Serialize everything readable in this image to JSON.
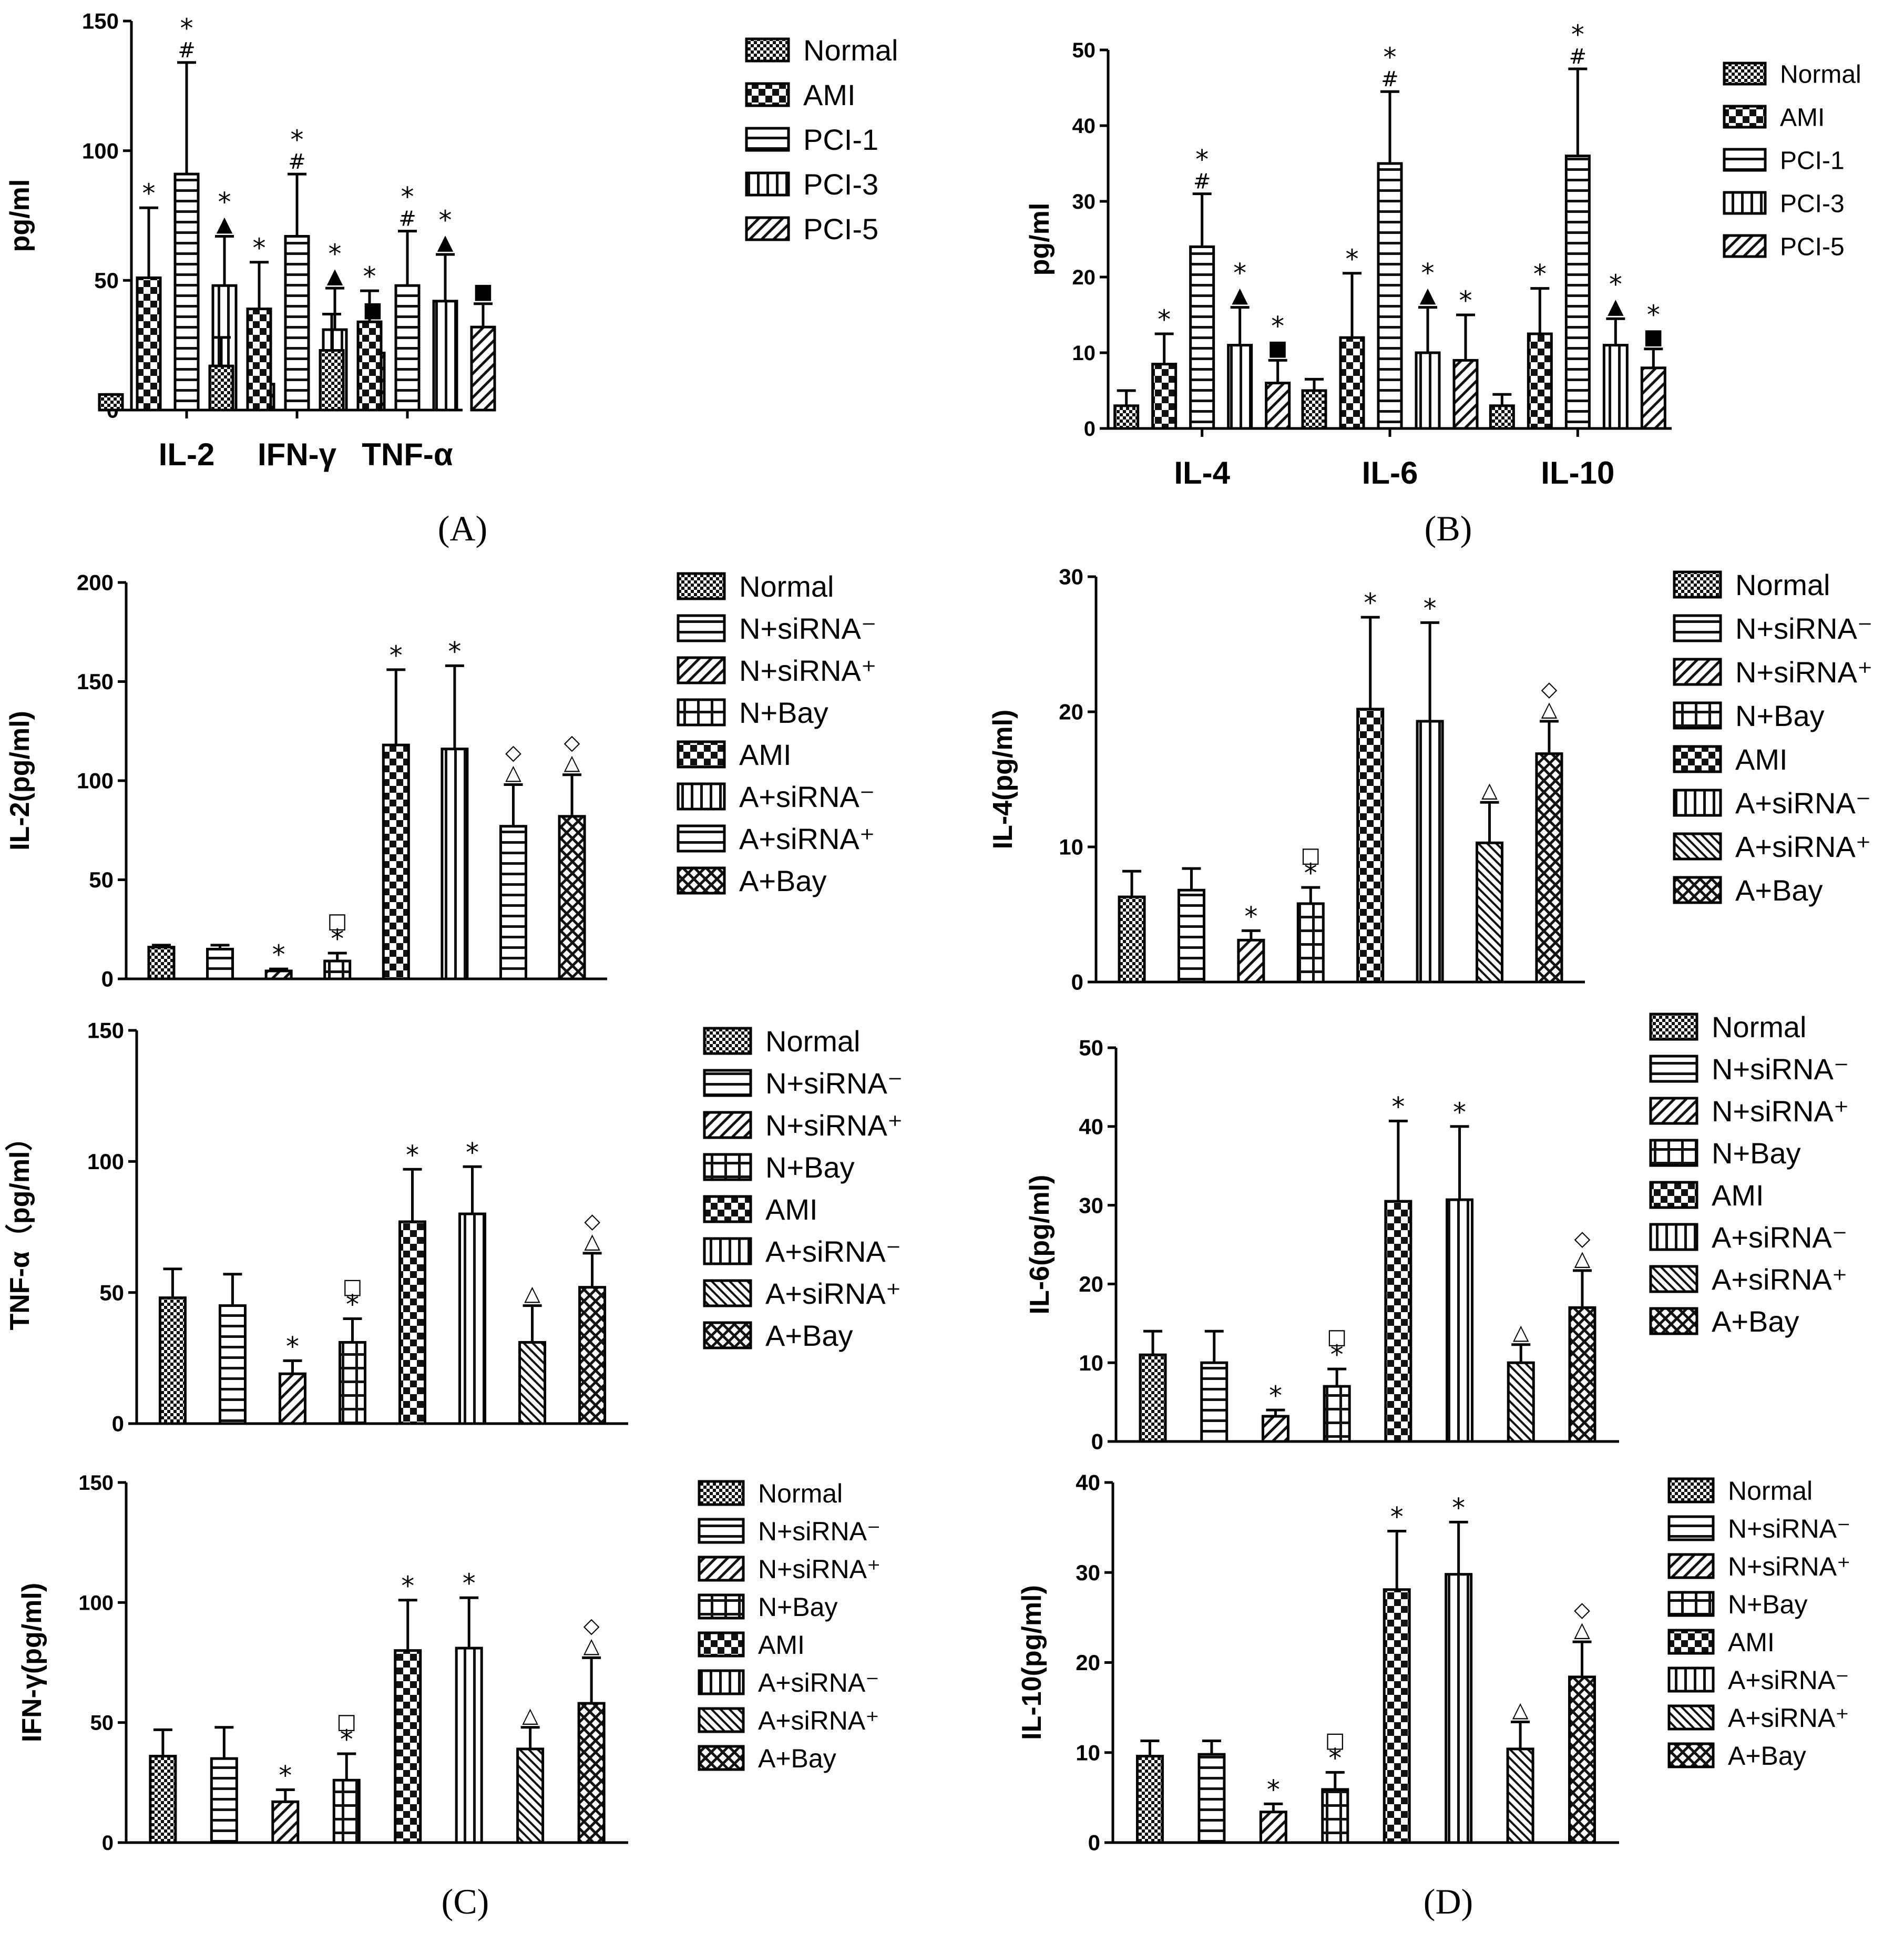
{
  "panel_labels": [
    "(A)",
    "(B)",
    "(C)",
    "(D)"
  ],
  "chart_data": [
    {
      "id": "A",
      "type": "bar",
      "title": "",
      "xlabel": "",
      "ylabel": "pg/ml",
      "ylim": [
        0,
        150
      ],
      "yticks": [
        0,
        50,
        100,
        150
      ],
      "categories": [
        "IL-2",
        "IFN-γ",
        "TNF-α"
      ],
      "legend": [
        "Normal",
        "AMI",
        "PCI-1",
        "PCI-3",
        "PCI-5"
      ],
      "series": [
        {
          "name": "Normal",
          "pattern": "checker",
          "values": [
            6,
            17,
            23
          ],
          "errors": [
            6,
            28,
            37
          ],
          "annotations": [
            "",
            "",
            ""
          ]
        },
        {
          "name": "AMI",
          "pattern": "bigcheck",
          "values": [
            51,
            39,
            34
          ],
          "errors": [
            78,
            57,
            46
          ],
          "annotations": [
            "*",
            "*",
            "*"
          ]
        },
        {
          "name": "PCI-1",
          "pattern": "hlines",
          "values": [
            91,
            67,
            48
          ],
          "errors": [
            134,
            91,
            69
          ],
          "annotations": [
            "*\n#",
            "*\n#",
            "*\n#"
          ]
        },
        {
          "name": "PCI-3",
          "pattern": "vlines",
          "values": [
            48,
            31,
            42
          ],
          "errors": [
            67,
            47,
            60
          ],
          "annotations": [
            "*\n▲",
            "*\n▲",
            "*\n▲"
          ]
        },
        {
          "name": "PCI-5",
          "pattern": "diag",
          "values": [
            10,
            22,
            32
          ],
          "errors": [
            13,
            34,
            41
          ],
          "annotations": [
            "■",
            "■",
            "■"
          ]
        }
      ]
    },
    {
      "id": "B",
      "type": "bar",
      "title": "",
      "xlabel": "",
      "ylabel": "pg/ml",
      "ylim": [
        0,
        50
      ],
      "yticks": [
        0,
        10,
        20,
        30,
        40,
        50
      ],
      "categories": [
        "IL-4",
        "IL-6",
        "IL-10"
      ],
      "legend": [
        "Normal",
        "AMI",
        "PCI-1",
        "PCI-3",
        "PCI-5"
      ],
      "series": [
        {
          "name": "Normal",
          "pattern": "checker",
          "values": [
            3,
            5,
            3
          ],
          "errors": [
            5,
            6.5,
            4.5
          ],
          "annotations": [
            "",
            "",
            ""
          ]
        },
        {
          "name": "AMI",
          "pattern": "bigcheck",
          "values": [
            8.5,
            12,
            12.5
          ],
          "errors": [
            12.5,
            20.5,
            18.5
          ],
          "annotations": [
            "*",
            "*",
            "*"
          ]
        },
        {
          "name": "PCI-1",
          "pattern": "hlines",
          "values": [
            24,
            35,
            36
          ],
          "errors": [
            31,
            44.5,
            47.5
          ],
          "annotations": [
            "*\n#",
            "*\n#",
            "*\n#"
          ]
        },
        {
          "name": "PCI-3",
          "pattern": "vlines",
          "values": [
            11,
            10,
            11
          ],
          "errors": [
            16,
            16,
            14.5
          ],
          "annotations": [
            "*\n▲",
            "*\n▲",
            "*\n▲"
          ]
        },
        {
          "name": "PCI-5",
          "pattern": "diag",
          "values": [
            6,
            9,
            8
          ],
          "errors": [
            9,
            15,
            10.5
          ],
          "annotations": [
            "*\n■",
            "*",
            "*\n■"
          ]
        }
      ]
    },
    {
      "id": "C1",
      "type": "bar",
      "title": "",
      "xlabel": "",
      "ylabel": "IL-2(pg/ml)",
      "ylim": [
        0,
        200
      ],
      "yticks": [
        0,
        50,
        100,
        150,
        200
      ],
      "categories": [
        "Normal",
        "N+siRNA⁻",
        "N+siRNA⁺",
        "N+Bay",
        "AMI",
        "A+siRNA⁻",
        "A+siRNA⁺",
        "A+Bay"
      ],
      "legend": [
        "Normal",
        "N+siRNA⁻",
        "N+siRNA⁺",
        "N+Bay",
        "AMI",
        "A+siRNA⁻",
        "A+siRNA⁺",
        "A+Bay"
      ],
      "patterns": [
        "checker",
        "hlines",
        "diag",
        "grid",
        "bigcheck",
        "vlines",
        "hlines",
        "cross"
      ],
      "values": [
        16,
        15,
        4,
        9,
        118,
        116,
        77,
        82
      ],
      "errors": [
        17,
        17,
        5,
        13,
        156,
        158,
        98,
        103
      ],
      "annotations": [
        "",
        "",
        "*",
        "□\n*",
        "*",
        "*",
        "◇\n△",
        "◇\n△"
      ]
    },
    {
      "id": "C2",
      "type": "bar",
      "title": "",
      "xlabel": "",
      "ylabel": "TNF-α（pg/ml）",
      "ylim": [
        0,
        150
      ],
      "yticks": [
        0,
        50,
        100,
        150
      ],
      "categories": [
        "Normal",
        "N+siRNA⁻",
        "N+siRNA⁺",
        "N+Bay",
        "AMI",
        "A+siRNA⁻",
        "A+siRNA⁺",
        "A+Bay"
      ],
      "legend": [
        "Normal",
        "N+siRNA⁻",
        "N+siRNA⁺",
        "N+Bay",
        "AMI",
        "A+siRNA⁻",
        "A+siRNA⁺",
        "A+Bay"
      ],
      "patterns": [
        "checker",
        "hlines",
        "diag",
        "grid",
        "bigcheck",
        "vlines",
        "diag2",
        "cross"
      ],
      "values": [
        48,
        45,
        19,
        31,
        77,
        80,
        31,
        52
      ],
      "errors": [
        59,
        57,
        24,
        40,
        97,
        98,
        45,
        65
      ],
      "annotations": [
        "",
        "",
        "*",
        "□\n*",
        "*",
        "*",
        "△",
        "◇\n△"
      ]
    },
    {
      "id": "C3",
      "type": "bar",
      "title": "",
      "xlabel": "",
      "ylabel": "IFN-γ(pg/ml)",
      "ylim": [
        0,
        150
      ],
      "yticks": [
        0,
        50,
        100,
        150
      ],
      "categories": [
        "Normal",
        "N+siRNA⁻",
        "N+siRNA⁺",
        "N+Bay",
        "AMI",
        "A+siRNA⁻",
        "A+siRNA⁺",
        "A+Bay"
      ],
      "legend": [
        "Normal",
        "N+siRNA⁻",
        "N+siRNA⁺",
        "N+Bay",
        "AMI",
        "A+siRNA⁻",
        "A+siRNA⁺",
        "A+Bay"
      ],
      "patterns": [
        "checker",
        "hlines",
        "diag",
        "grid",
        "bigcheck",
        "vlines",
        "diag2",
        "cross"
      ],
      "values": [
        36,
        35,
        17,
        26,
        80,
        81,
        39,
        58
      ],
      "errors": [
        47,
        48,
        22,
        37,
        101,
        102,
        48,
        77
      ],
      "annotations": [
        "",
        "",
        "*",
        "□\n*",
        "*",
        "*",
        "△",
        "◇\n△"
      ]
    },
    {
      "id": "D1",
      "type": "bar",
      "title": "",
      "xlabel": "",
      "ylabel": "IL-4(pg/ml)",
      "ylim": [
        0,
        30
      ],
      "yticks": [
        0,
        10,
        20,
        30
      ],
      "categories": [
        "Normal",
        "N+siRNA⁻",
        "N+siRNA⁺",
        "N+Bay",
        "AMI",
        "A+siRNA⁻",
        "A+siRNA⁺",
        "A+Bay"
      ],
      "legend": [
        "Normal",
        "N+siRNA⁻",
        "N+siRNA⁺",
        "N+Bay",
        "AMI",
        "A+siRNA⁻",
        "A+siRNA⁺",
        "A+Bay"
      ],
      "patterns": [
        "checker",
        "hlines",
        "diag",
        "grid",
        "bigcheck",
        "vlines",
        "diag2",
        "cross"
      ],
      "values": [
        6.3,
        6.8,
        3.1,
        5.8,
        20.2,
        19.3,
        10.3,
        16.9
      ],
      "errors": [
        8.2,
        8.4,
        3.8,
        7,
        27,
        26.6,
        13.3,
        19.3
      ],
      "annotations": [
        "",
        "",
        "*",
        "□\n*",
        "*",
        "*",
        "△",
        "◇\n△"
      ]
    },
    {
      "id": "D2",
      "type": "bar",
      "title": "",
      "xlabel": "",
      "ylabel": "IL-6(pg/ml)",
      "ylim": [
        0,
        50
      ],
      "yticks": [
        0,
        10,
        20,
        30,
        40,
        50
      ],
      "categories": [
        "Normal",
        "N+siRNA⁻",
        "N+siRNA⁺",
        "N+Bay",
        "AMI",
        "A+siRNA⁻",
        "A+siRNA⁺",
        "A+Bay"
      ],
      "legend": [
        "Normal",
        "N+siRNA⁻",
        "N+siRNA⁺",
        "N+Bay",
        "AMI",
        "A+siRNA⁻",
        "A+siRNA⁺",
        "A+Bay"
      ],
      "patterns": [
        "checker",
        "hlines",
        "diag",
        "grid",
        "bigcheck",
        "vlines",
        "diag2",
        "cross"
      ],
      "values": [
        11,
        10,
        3.2,
        7,
        30.5,
        30.7,
        10,
        17
      ],
      "errors": [
        14,
        14,
        4,
        9.2,
        40.7,
        40,
        12.3,
        21.7
      ],
      "annotations": [
        "",
        "",
        "*",
        "□\n*",
        "*",
        "*",
        "△",
        "◇\n△"
      ]
    },
    {
      "id": "D3",
      "type": "bar",
      "title": "",
      "xlabel": "",
      "ylabel": "IL-10(pg/ml)",
      "ylim": [
        0,
        40
      ],
      "yticks": [
        0,
        10,
        20,
        30,
        40
      ],
      "categories": [
        "Normal",
        "N+siRNA⁻",
        "N+siRNA⁺",
        "N+Bay",
        "AMI",
        "A+siRNA⁻",
        "A+siRNA⁺",
        "A+Bay"
      ],
      "legend": [
        "Normal",
        "N+siRNA⁻",
        "N+siRNA⁺",
        "N+Bay",
        "AMI",
        "A+siRNA⁻",
        "A+siRNA⁺",
        "A+Bay"
      ],
      "patterns": [
        "checker",
        "hlines",
        "diag",
        "grid",
        "bigcheck",
        "vlines",
        "diag2",
        "cross"
      ],
      "values": [
        9.6,
        9.8,
        3.4,
        5.9,
        28.1,
        29.8,
        10.4,
        18.4
      ],
      "errors": [
        11.3,
        11.3,
        4.3,
        7.8,
        34.6,
        35.6,
        13.4,
        22.3
      ],
      "annotations": [
        "",
        "",
        "*",
        "□\n*",
        "*",
        "*",
        "△",
        "◇\n△"
      ]
    }
  ]
}
